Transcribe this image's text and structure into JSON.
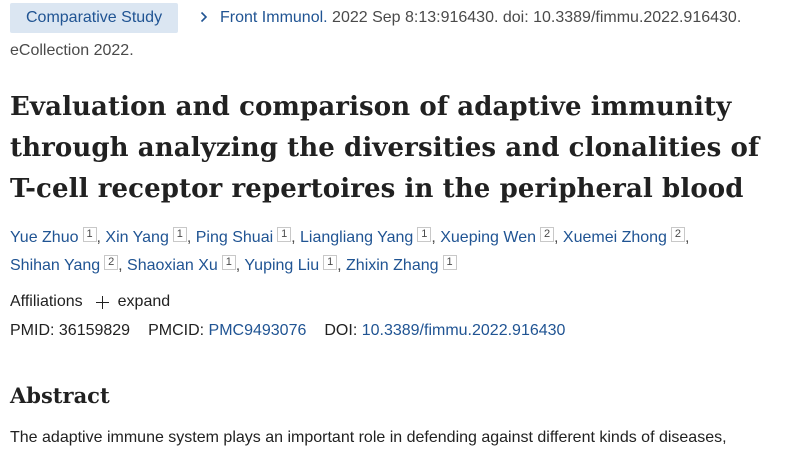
{
  "citation": {
    "article_type": "Comparative Study",
    "journal": "Front Immunol.",
    "details": " 2022 Sep 8:13:916430. doi: 10.3389/fimmu.2022.916430.",
    "epub": "eCollection 2022."
  },
  "article": {
    "title_lines": [
      "Evaluation and comparison of adaptive immunity",
      "through analyzing the diversities and clonalities of",
      "T-cell receptor repertoires in the peripheral blood"
    ]
  },
  "authors": [
    {
      "name": "Yue Zhuo",
      "aff": "1",
      "sep": ", "
    },
    {
      "name": "Xin Yang",
      "aff": "1",
      "sep": ", "
    },
    {
      "name": "Ping Shuai",
      "aff": "1",
      "sep": ", "
    },
    {
      "name": "Liangliang Yang",
      "aff": "1",
      "sep": ", "
    },
    {
      "name": "Xueping Wen",
      "aff": "2",
      "sep": ", "
    },
    {
      "name": "Xuemei Zhong",
      "aff": "2",
      "sep": ","
    },
    {
      "name": "Shihan Yang",
      "aff": "2",
      "sep": ", "
    },
    {
      "name": "Shaoxian Xu",
      "aff": "1",
      "sep": ", "
    },
    {
      "name": "Yuping Liu",
      "aff": "1",
      "sep": ", "
    },
    {
      "name": "Zhixin Zhang",
      "aff": "1",
      "sep": ""
    }
  ],
  "affiliations": {
    "label": "Affiliations",
    "expand_label": "expand",
    "expand_icon": "plus-icon"
  },
  "identifiers": {
    "pmid_label": "PMID: ",
    "pmid": "36159829",
    "pmcid_label": "PMCID: ",
    "pmcid": "PMC9493076",
    "doi_label": "DOI: ",
    "doi": "10.3389/fimmu.2022.916430"
  },
  "abstract": {
    "heading": "Abstract",
    "text": "The adaptive immune system plays an important role in defending against different kinds of diseases,"
  },
  "colors": {
    "link": "#205493",
    "badge_background": "#dbe6f2",
    "text": "#212121"
  }
}
